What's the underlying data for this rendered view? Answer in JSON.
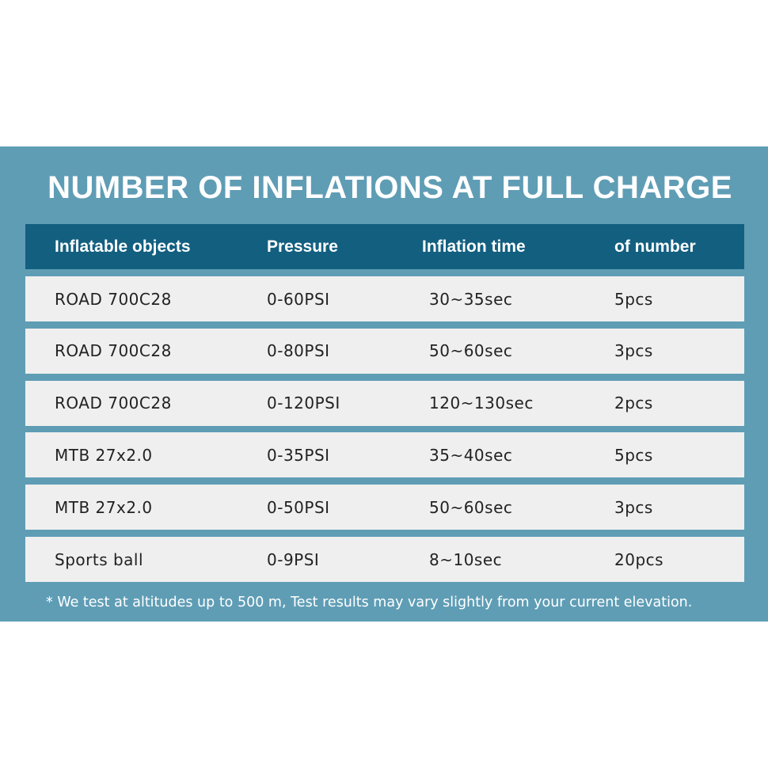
{
  "header": {
    "title": "NUMBER OF INFLATIONS AT FULL CHARGE"
  },
  "table": {
    "columns": [
      "Inflatable objects",
      "Pressure",
      "Inflation time",
      "of number"
    ],
    "rows": [
      [
        "ROAD 700C28",
        "0-60PSI",
        "30~35sec",
        "5pcs"
      ],
      [
        "ROAD 700C28",
        "0-80PSI",
        "50~60sec",
        "3pcs"
      ],
      [
        "ROAD 700C28",
        "0-120PSI",
        "120~130sec",
        "2pcs"
      ],
      [
        "MTB 27x2.0",
        "0-35PSI",
        "35~40sec",
        "5pcs"
      ],
      [
        "MTB 27x2.0",
        "0-50PSI",
        "50~60sec",
        "3pcs"
      ],
      [
        "Sports ball",
        "0-9PSI",
        "8~10sec",
        "20pcs"
      ]
    ]
  },
  "footnote": "* We test at altitudes up to 500 m, Test results may vary slightly from your current elevation."
}
